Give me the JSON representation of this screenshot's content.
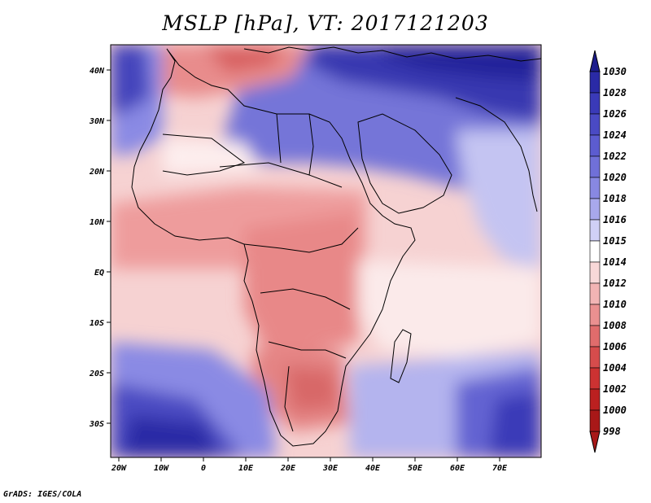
{
  "title": "MSLP [hPa], VT: 2017121203",
  "credit": "GrADS: IGES/COLA",
  "map": {
    "lon_range": [
      -22,
      80
    ],
    "lat_range": [
      -37,
      45
    ],
    "lon_ticks": [
      "20W",
      "10W",
      "0",
      "10E",
      "20E",
      "30E",
      "40E",
      "50E",
      "60E",
      "70E"
    ],
    "lat_ticks": [
      "40N",
      "30N",
      "20N",
      "10N",
      "EQ",
      "10S",
      "20S",
      "30S"
    ],
    "region": "Africa, Middle East, Arabian Sea"
  },
  "colorbar": {
    "levels": [
      "1030",
      "1028",
      "1026",
      "1024",
      "1022",
      "1020",
      "1018",
      "1016",
      "1015",
      "1014",
      "1012",
      "1010",
      "1008",
      "1006",
      "1004",
      "1002",
      "1000",
      "998"
    ],
    "colors": [
      "#1c1c8c",
      "#2a2aa6",
      "#3a3ab8",
      "#4a4ac4",
      "#5c5cd0",
      "#7070d8",
      "#8888e2",
      "#a8a8ec",
      "#d0d0f6",
      "#ffffff",
      "#f8d8d8",
      "#f2b4b4",
      "#ea9090",
      "#e06c6c",
      "#d64c4c",
      "#cc3232",
      "#bb2020",
      "#a81818"
    ],
    "top_color": "#1c1c8c",
    "bottom_color": "#a81818"
  }
}
